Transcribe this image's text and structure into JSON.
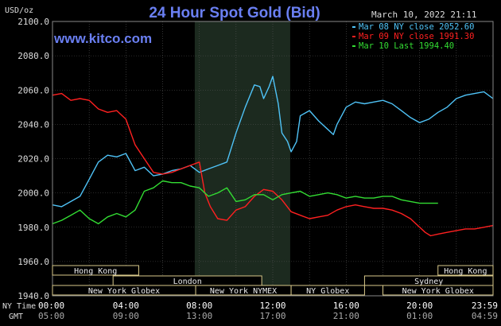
{
  "chart_data": {
    "type": "line",
    "title": "24 Hour Spot Gold (Bid)",
    "datetime": "March 10, 2022 21:11",
    "watermark": "www.kitco.com",
    "ylabel": "USD/oz",
    "ylim": [
      1940,
      2100
    ],
    "yticks": [
      "2100.0",
      "2080.0",
      "2060.0",
      "2040.0",
      "2020.0",
      "2000.0",
      "1980.0",
      "1960.0",
      "1940.0"
    ],
    "xlim": [
      0,
      24
    ],
    "x_nytime_label": "NY Time",
    "x_gmt_label": "GMT",
    "xticks_ny": [
      "00:00",
      "04:00",
      "08:00",
      "12:00",
      "16:00",
      "20:00",
      "23:59"
    ],
    "xticks_gmt": [
      "05:00",
      "09:00",
      "13:00",
      "17:00",
      "21:00",
      "01:00",
      "04:59"
    ],
    "grid": true,
    "legend_position": "top-right",
    "highlight_band": [
      7.75,
      12.95
    ],
    "sessions": [
      {
        "name": "Hong Kong",
        "start": 0.0,
        "end": 4.7,
        "row": 0
      },
      {
        "name": "Hong Kong",
        "start": 21.0,
        "end": 24.0,
        "row": 0
      },
      {
        "name": "London",
        "start": 3.3,
        "end": 11.4,
        "row": 1
      },
      {
        "name": "Sydney",
        "start": 17.0,
        "end": 24.0,
        "row": 1
      },
      {
        "name": "New York Globex",
        "start": 0.0,
        "end": 7.8,
        "row": 2
      },
      {
        "name": "New York NYMEX",
        "start": 7.8,
        "end": 13.0,
        "row": 2
      },
      {
        "name": "NY Globex",
        "start": 13.0,
        "end": 17.0,
        "row": 2
      },
      {
        "name": "New York Globex",
        "start": 18.0,
        "end": 24.0,
        "row": 2
      }
    ],
    "series": [
      {
        "name": "Mar 08 NY close 2052.60",
        "color": "#4fc3f7",
        "x": [
          0,
          0.5,
          1.0,
          1.5,
          2.0,
          2.5,
          3.0,
          3.5,
          4.0,
          4.5,
          5.0,
          5.5,
          6.0,
          6.5,
          7.0,
          7.5,
          8.0,
          8.5,
          9.0,
          9.5,
          10.0,
          10.5,
          11.0,
          11.3,
          11.5,
          11.8,
          12.0,
          12.3,
          12.5,
          12.8,
          13.0,
          13.3,
          13.5,
          14.0,
          14.5,
          15.0,
          15.3,
          15.5,
          16.0,
          16.5,
          17.0,
          17.5,
          18.0,
          18.5,
          19.0,
          19.5,
          20.0,
          20.5,
          21.0,
          21.5,
          22.0,
          22.5,
          23.0,
          23.5,
          24.0
        ],
        "y": [
          1993,
          1992,
          1995,
          1998,
          2008,
          2018,
          2022,
          2021,
          2023,
          2013,
          2015,
          2010,
          2011,
          2013,
          2014,
          2016,
          2012,
          2014,
          2016,
          2018,
          2035,
          2050,
          2063,
          2062,
          2055,
          2062,
          2068,
          2052,
          2035,
          2030,
          2024,
          2030,
          2045,
          2048,
          2042,
          2037,
          2034,
          2040,
          2050,
          2053,
          2052,
          2053,
          2054,
          2052,
          2048,
          2044,
          2041,
          2043,
          2047,
          2050,
          2055,
          2057,
          2058,
          2059,
          2055
        ]
      },
      {
        "name": "Mar 09 NY close 1991.30",
        "color": "#ff2020",
        "x": [
          0,
          0.5,
          1.0,
          1.5,
          2.0,
          2.5,
          3.0,
          3.5,
          4.0,
          4.5,
          5.0,
          5.5,
          6.0,
          6.5,
          7.0,
          7.5,
          8.0,
          8.3,
          8.6,
          9.0,
          9.5,
          10.0,
          10.5,
          11.0,
          11.5,
          12.0,
          12.5,
          13.0,
          13.5,
          14.0,
          14.5,
          15.0,
          15.5,
          16.0,
          16.5,
          17.0,
          17.5,
          18.0,
          18.5,
          19.0,
          19.5,
          20.0,
          20.3,
          20.6,
          21.0,
          21.5,
          22.0,
          22.5,
          23.0,
          23.5,
          24.0
        ],
        "y": [
          2057,
          2058,
          2054,
          2055,
          2054,
          2049,
          2047,
          2048,
          2043,
          2028,
          2020,
          2012,
          2011,
          2012,
          2014,
          2016,
          2018,
          2000,
          1992,
          1985,
          1984,
          1990,
          1992,
          1998,
          2002,
          2001,
          1996,
          1989,
          1987,
          1985,
          1986,
          1987,
          1990,
          1992,
          1993,
          1992,
          1991,
          1991,
          1990,
          1988,
          1985,
          1980,
          1977,
          1975,
          1976,
          1977,
          1978,
          1979,
          1979,
          1980,
          1981
        ]
      },
      {
        "name": "Mar 10 Last 1994.40",
        "color": "#33dd33",
        "x": [
          0,
          0.5,
          1.0,
          1.5,
          2.0,
          2.5,
          3.0,
          3.5,
          4.0,
          4.5,
          5.0,
          5.5,
          6.0,
          6.5,
          7.0,
          7.5,
          8.0,
          8.5,
          9.0,
          9.5,
          10.0,
          10.5,
          11.0,
          11.5,
          12.0,
          12.5,
          13.0,
          13.5,
          14.0,
          14.5,
          15.0,
          15.5,
          16.0,
          16.5,
          17.0,
          17.5,
          18.0,
          18.5,
          19.0,
          19.5,
          20.0,
          20.5,
          21.0
        ],
        "y": [
          1982,
          1984,
          1987,
          1990,
          1985,
          1982,
          1986,
          1988,
          1986,
          1990,
          2001,
          2003,
          2007,
          2006,
          2006,
          2004,
          2003,
          1998,
          2000,
          2003,
          1995,
          1996,
          1999,
          1999,
          1996,
          1999,
          2000,
          2001,
          1998,
          1999,
          2000,
          1999,
          1997,
          1998,
          1997,
          1997,
          1998,
          1998,
          1996,
          1995,
          1994,
          1994,
          1994
        ]
      }
    ]
  }
}
